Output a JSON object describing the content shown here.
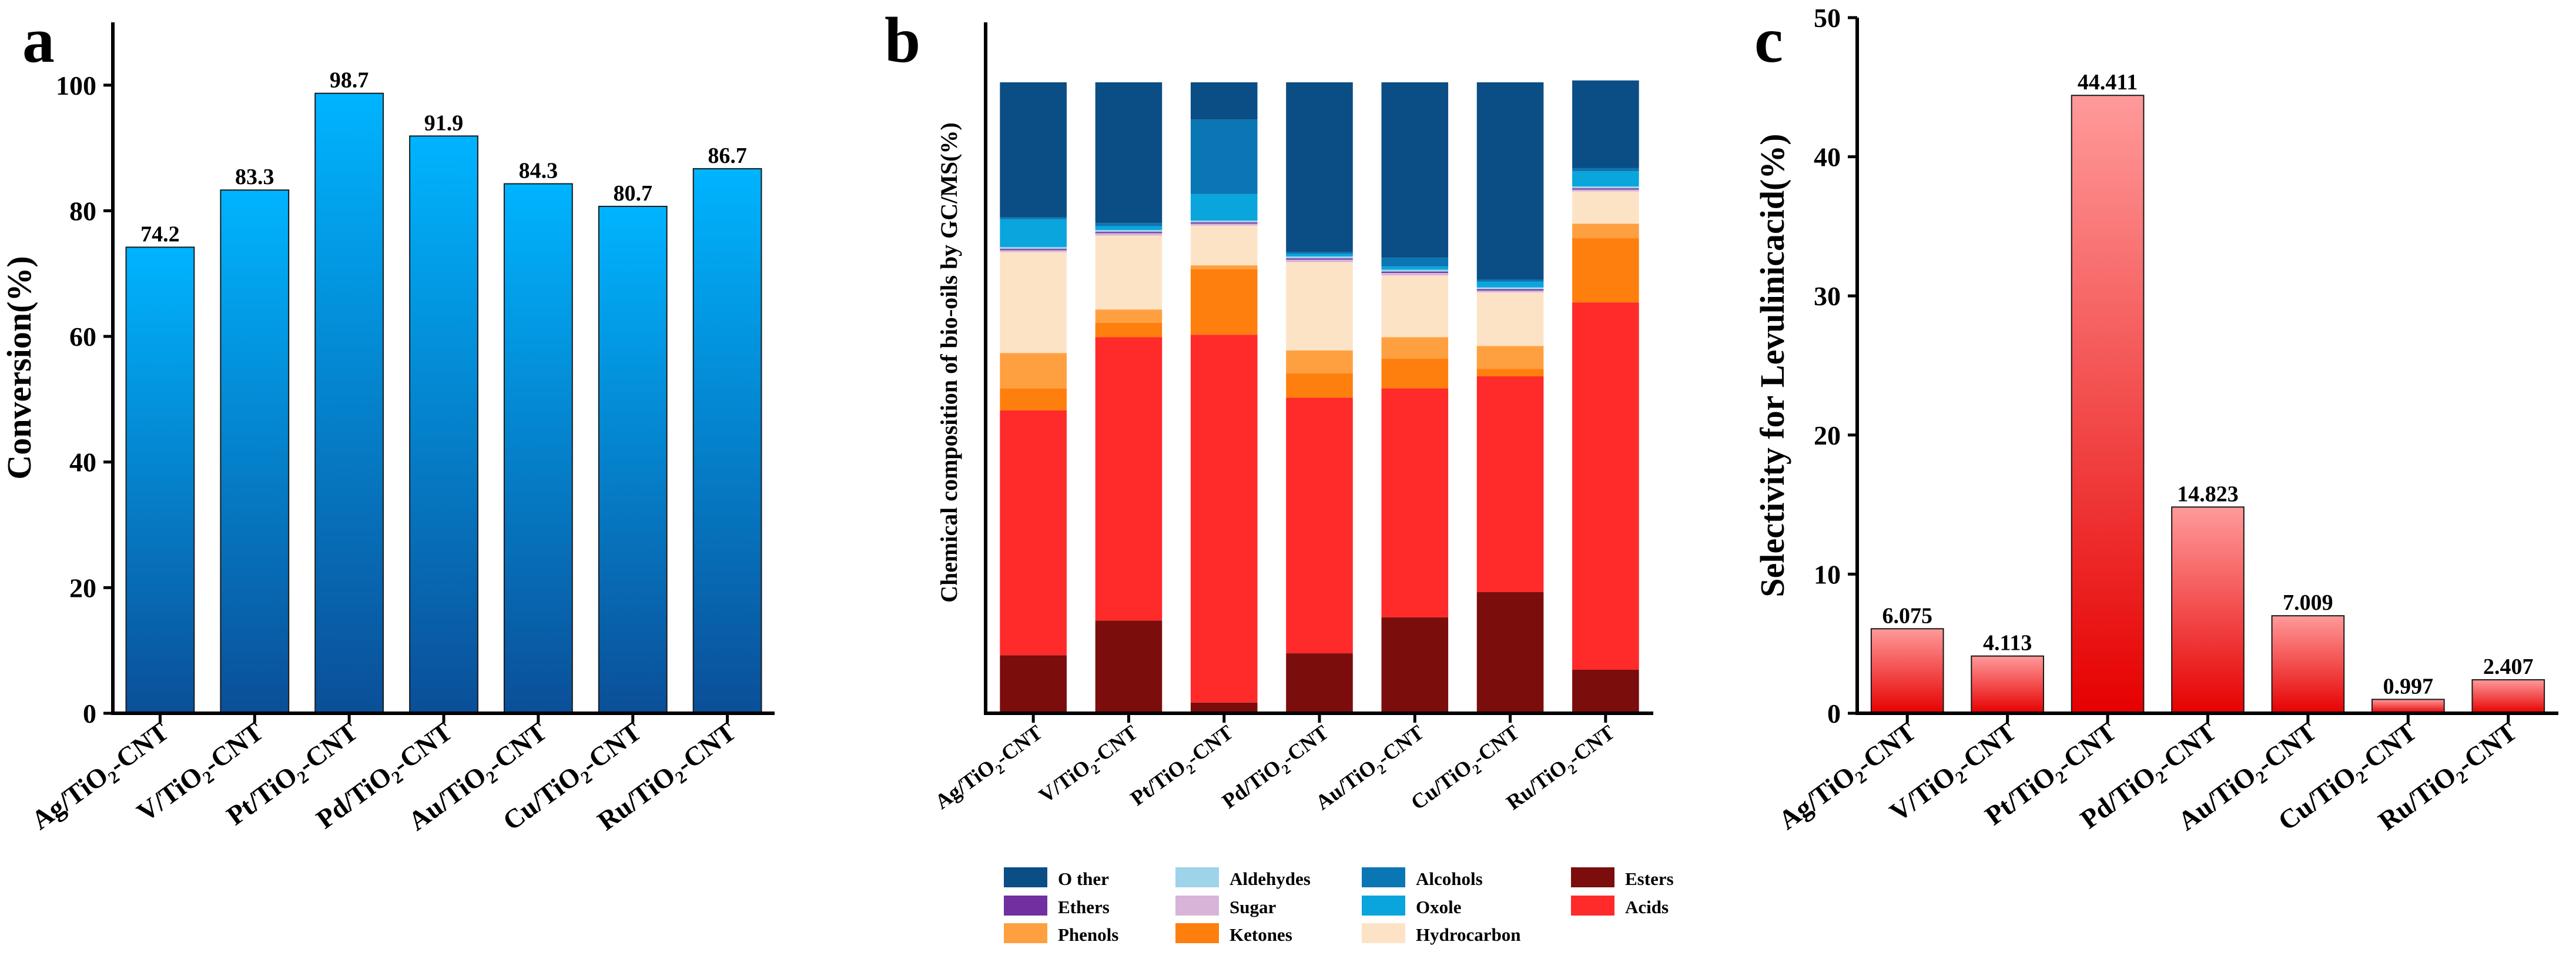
{
  "chart_data": [
    {
      "panel": "a",
      "type": "bar",
      "title": "",
      "ylabel": "Conversion(%)",
      "xlabel": "",
      "ylim": [
        0,
        110
      ],
      "yticks": [
        0,
        20,
        40,
        60,
        80,
        100
      ],
      "categories": [
        "Ag/TiO2-CNT",
        "V/TiO2-CNT",
        "Pt/TiO2-CNT",
        "Pd/TiO2-CNT",
        "Au/TiO2-CNT",
        "Cu/TiO2-CNT",
        "Ru/TiO2-CNT"
      ],
      "values": [
        74.2,
        83.3,
        98.7,
        91.9,
        84.3,
        80.7,
        86.7
      ],
      "data_labels": [
        "74.2",
        "83.3",
        "98.7",
        "91.9",
        "84.3",
        "80.7",
        "86.7"
      ],
      "colors": {
        "top": "#00b4ff",
        "bottom": "#0a4f98"
      }
    },
    {
      "panel": "b",
      "type": "bar",
      "stacked": true,
      "title": "",
      "ylabel": "Chemical composition of bio-oils by GC/MS(%)",
      "xlabel": "",
      "ylim": [
        0,
        100
      ],
      "categories": [
        "Ag/TiO2-CNT",
        "V/TiO2-CNT",
        "Pt/TiO2-CNT",
        "Pd/TiO2-CNT",
        "Au/TiO2-CNT",
        "Cu/TiO2-CNT",
        "Ru/TiO2-CNT"
      ],
      "series": [
        {
          "name": "Esters",
          "color": "#7b0d0d",
          "values": [
            9.2,
            14.7,
            1.7,
            9.5,
            15.2,
            19.2,
            6.9
          ]
        },
        {
          "name": "Acids",
          "color": "#ff2a2a",
          "values": [
            38.8,
            44.9,
            58.3,
            40.5,
            36.3,
            34.2,
            58.2
          ]
        },
        {
          "name": "Ketones",
          "color": "#ff7f0e",
          "values": [
            3.5,
            2.3,
            10.4,
            3.9,
            4.7,
            1.2,
            10.2
          ]
        },
        {
          "name": "Phenols",
          "color": "#ffa040",
          "values": [
            5.6,
            2.1,
            0.6,
            3.6,
            3.4,
            3.6,
            2.3
          ]
        },
        {
          "name": "Hydrocarbon",
          "color": "#fde3c6",
          "values": [
            16.0,
            11.7,
            6.3,
            14.0,
            9.8,
            8.5,
            5.1
          ]
        },
        {
          "name": "Sugar",
          "color": "#d8b4d8",
          "values": [
            0.3,
            0.4,
            0.3,
            0.4,
            0.4,
            0.3,
            0.3
          ]
        },
        {
          "name": "Ethers",
          "color": "#7030a0",
          "values": [
            0.2,
            0.2,
            0.2,
            0.2,
            0.2,
            0.2,
            0.2
          ]
        },
        {
          "name": "Aldehydes",
          "color": "#9ed3ea",
          "values": [
            0.3,
            0.3,
            0.3,
            0.3,
            0.3,
            0.3,
            0.3
          ]
        },
        {
          "name": "Oxole",
          "color": "#0aa5dd",
          "values": [
            4.4,
            0.6,
            4.2,
            0.4,
            0.5,
            0.9,
            2.4
          ]
        },
        {
          "name": "Alcohols",
          "color": "#0a76b4",
          "values": [
            0.3,
            0.5,
            11.8,
            0.3,
            1.4,
            0.3,
            0.5
          ]
        },
        {
          "name": "O ther",
          "color": "#0a4e85",
          "values": [
            21.4,
            22.3,
            5.9,
            26.9,
            27.8,
            31.3,
            13.9
          ]
        }
      ],
      "legend": {
        "placement": "bottom",
        "rows": [
          [
            "O ther",
            "Aldehydes",
            "Alcohols",
            "Esters"
          ],
          [
            "Ethers",
            "Sugar",
            "Oxole",
            "Acids"
          ],
          [
            "Phenols",
            "Ketones",
            "Hydrocarbon"
          ]
        ]
      }
    },
    {
      "panel": "c",
      "type": "bar",
      "title": "",
      "ylabel": "Selectivity for Levulinicacid(%)",
      "xlabel": "",
      "ylim": [
        0,
        50
      ],
      "yticks": [
        0,
        10,
        20,
        30,
        40,
        50
      ],
      "categories": [
        "Ag/TiO2-CNT",
        "V/TiO2-CNT",
        "Pt/TiO2-CNT",
        "Pd/TiO2-CNT",
        "Au/TiO2-CNT",
        "Cu/TiO2-CNT",
        "Ru/TiO2-CNT"
      ],
      "values": [
        6.075,
        4.113,
        44.411,
        14.823,
        7.009,
        0.997,
        2.407
      ],
      "data_labels": [
        "6.075",
        "4.113",
        "44.411",
        "14.823",
        "7.009",
        "0.997",
        "2.407"
      ],
      "colors": {
        "top": "#ff9a9a",
        "bottom": "#e60000"
      }
    }
  ],
  "panels": {
    "a": {
      "letter": "a"
    },
    "b": {
      "letter": "b"
    },
    "c": {
      "letter": "c"
    }
  }
}
